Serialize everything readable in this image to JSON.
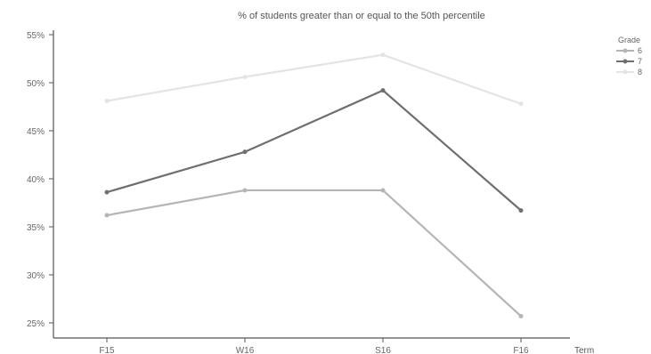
{
  "chart_data": {
    "type": "line",
    "title": "% of students greater than or equal to the 50th percentile",
    "xlabel": "Term",
    "ylabel": "",
    "categories": [
      "F15",
      "W16",
      "S16",
      "F16"
    ],
    "ylim": [
      24,
      56
    ],
    "yticks": [
      25,
      30,
      35,
      40,
      45,
      50,
      55
    ],
    "ytick_labels": [
      "25%",
      "30%",
      "35%",
      "40%",
      "45%",
      "50%",
      "55%"
    ],
    "grid": false,
    "legend_title": "Grade",
    "legend_position": "top-right",
    "series": [
      {
        "name": "6",
        "values": [
          36.2,
          38.8,
          38.8,
          25.7
        ],
        "color": "#b5b5b5"
      },
      {
        "name": "7",
        "values": [
          38.6,
          42.8,
          49.2,
          36.7
        ],
        "color": "#6f6f6f"
      },
      {
        "name": "8",
        "values": [
          48.1,
          50.6,
          52.9,
          47.8
        ],
        "color": "#e4e4e4"
      }
    ]
  }
}
